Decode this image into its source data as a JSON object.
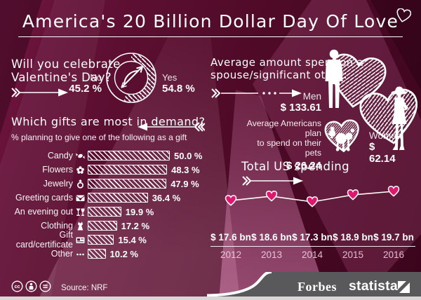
{
  "title": {
    "text": "America's 20 Billion Dollar Day Of Love"
  },
  "celebrate": {
    "question_line1": "Will you celebrate",
    "question_line2": "Valentine's Day?",
    "no_label": "No",
    "no_value": "45.2 %",
    "yes_label": "Yes",
    "yes_value": "54.8 %",
    "yes_pct": 54.8
  },
  "spouse": {
    "heading_line1": "Average amount spent on a",
    "heading_line2": "spouse/significant other:",
    "men_label": "Men",
    "men_value": "$ 133.61",
    "women_label": "Women",
    "women_value": "$ 62.14",
    "pets_line1": "Average Americans plan",
    "pets_line2": "to spend on their pets",
    "pets_value": "$ 26.24"
  },
  "gifts": {
    "heading": "Which gifts are most in demand?",
    "subheading": "% planning to give one of the following as a gift",
    "items": [
      {
        "label": "Candy",
        "icon": "candy-icon",
        "value": 50.0,
        "display": "50.0 %"
      },
      {
        "label": "Flowers",
        "icon": "flower-icon",
        "value": 48.3,
        "display": "48.3 %"
      },
      {
        "label": "Jewelry",
        "icon": "ring-icon",
        "value": 47.9,
        "display": "47.9 %"
      },
      {
        "label": "Greeting cards",
        "icon": "envelope-heart-icon",
        "value": 36.4,
        "display": "36.4 %"
      },
      {
        "label": "An evening out",
        "icon": "drinks-icon",
        "value": 19.9,
        "display": "19.9 %"
      },
      {
        "label": "Clothing",
        "icon": "dress-icon",
        "value": 17.2,
        "display": "17.2 %"
      },
      {
        "label": "Gift card/certificate",
        "icon": "gift-card-icon",
        "value": 15.4,
        "display": "15.4 %"
      },
      {
        "label": "Other",
        "icon": "ellipsis-icon",
        "value": 10.2,
        "display": "10.2 %"
      }
    ]
  },
  "spending": {
    "heading": "Total US spending",
    "points": [
      {
        "year": "2012",
        "display": "$ 17.6 bn",
        "amount": 17.6
      },
      {
        "year": "2013",
        "display": "$ 18.6 bn",
        "amount": 18.6
      },
      {
        "year": "2014",
        "display": "$ 17.3 bn",
        "amount": 17.3
      },
      {
        "year": "2015",
        "display": "$ 18.9 bn",
        "amount": 18.9
      },
      {
        "year": "2016",
        "display": "$ 19.7 bn",
        "amount": 19.7
      }
    ]
  },
  "footer": {
    "source": "Source: NRF",
    "publisher": "Forbes",
    "brand": "statista",
    "license_icons": [
      "cc-icon",
      "attribution-icon",
      "no-derivatives-icon"
    ]
  },
  "colors": {
    "background": "#4e0a27",
    "beam_pink": "#c4679a",
    "accent_pink": "#e0176e",
    "footer_gray": "#59595b"
  },
  "chart_data": [
    {
      "type": "pie",
      "title": "Will you celebrate Valentine's Day?",
      "categories": [
        "Yes",
        "No"
      ],
      "values": [
        54.8,
        45.2
      ],
      "unit": "%"
    },
    {
      "type": "bar",
      "title": "Which gifts are most in demand?",
      "subtitle": "% planning to give one of the following as a gift",
      "categories": [
        "Candy",
        "Flowers",
        "Jewelry",
        "Greeting cards",
        "An evening out",
        "Clothing",
        "Gift card/certificate",
        "Other"
      ],
      "values": [
        50.0,
        48.3,
        47.9,
        36.4,
        19.9,
        17.2,
        15.4,
        10.2
      ],
      "orientation": "horizontal",
      "xlim": [
        0,
        50
      ],
      "unit": "%"
    },
    {
      "type": "line",
      "title": "Total US spending",
      "x": [
        "2012",
        "2013",
        "2014",
        "2015",
        "2016"
      ],
      "values": [
        17.6,
        18.6,
        17.3,
        18.9,
        19.7
      ],
      "labels": [
        "$ 17.6 bn",
        "$ 18.6 bn",
        "$ 17.3 bn",
        "$ 18.9 bn",
        "$ 19.7 bn"
      ],
      "unit": "billion USD",
      "marker": "heart"
    },
    {
      "type": "table",
      "title": "Average amount spent on a spouse/significant other",
      "rows": [
        [
          "Men",
          "$ 133.61"
        ],
        [
          "Women",
          "$ 62.14"
        ],
        [
          "Pets",
          "$ 26.24"
        ]
      ]
    }
  ]
}
